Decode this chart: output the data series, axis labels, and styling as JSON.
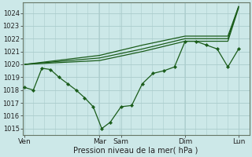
{
  "background_color": "#cce8e8",
  "grid_color": "#aacccc",
  "line_color": "#1a5c1a",
  "xlabel": "Pression niveau de la mer( hPa )",
  "ylim": [
    1014.5,
    1024.8
  ],
  "yticks": [
    1015,
    1016,
    1017,
    1018,
    1019,
    1020,
    1021,
    1022,
    1023,
    1024
  ],
  "xtick_labels": [
    "Ven",
    "Mar",
    "Sam",
    "Dim",
    "Lun"
  ],
  "xtick_positions": [
    0.0,
    3.5,
    4.5,
    7.5,
    10.0
  ],
  "xlim": [
    -0.1,
    10.5
  ],
  "series1_x": [
    0.0,
    0.4,
    0.8,
    1.2,
    1.6,
    2.0,
    2.4,
    2.8,
    3.2,
    3.6,
    4.0,
    4.5,
    5.0,
    5.5,
    6.0,
    6.5,
    7.0,
    7.5,
    8.0,
    8.5,
    9.0,
    9.5,
    10.0
  ],
  "series1_y": [
    1018.2,
    1018.0,
    1019.7,
    1019.6,
    1019.0,
    1018.5,
    1018.0,
    1017.4,
    1016.7,
    1015.0,
    1015.5,
    1016.7,
    1016.8,
    1018.5,
    1019.3,
    1019.5,
    1019.8,
    1021.8,
    1021.8,
    1021.5,
    1021.2,
    1019.8,
    1021.2
  ],
  "series2_x": [
    0.0,
    3.5,
    5.5,
    7.5,
    9.5,
    10.0
  ],
  "series2_y": [
    1020.0,
    1020.3,
    1021.0,
    1021.8,
    1021.8,
    1024.4
  ],
  "series3_x": [
    0.0,
    3.5,
    5.5,
    7.5,
    9.5,
    10.0
  ],
  "series3_y": [
    1020.0,
    1020.5,
    1021.2,
    1022.0,
    1022.0,
    1024.5
  ],
  "series4_x": [
    0.0,
    3.5,
    5.5,
    7.5,
    9.5,
    10.0
  ],
  "series4_y": [
    1020.0,
    1020.7,
    1021.5,
    1022.2,
    1022.2,
    1024.5
  ]
}
